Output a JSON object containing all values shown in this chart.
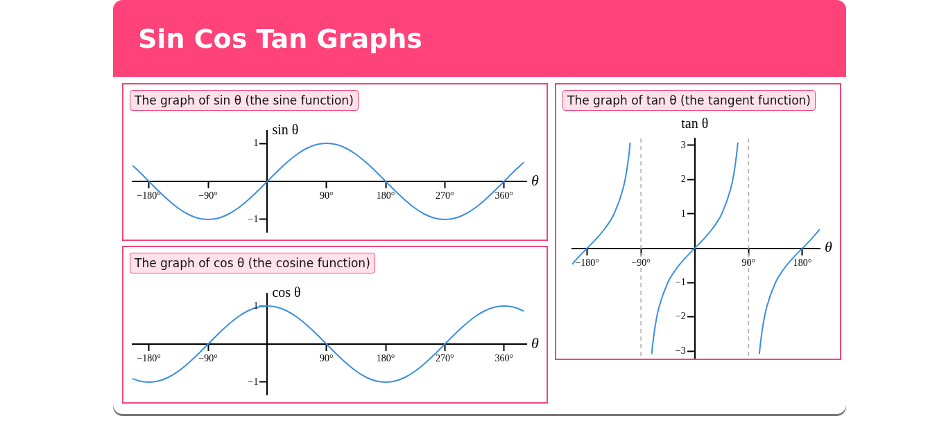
{
  "chart_data": [
    {
      "type": "line",
      "title": "Sin Cos Tan Graphs",
      "subtitle": "The graph of sin θ (the sine function)",
      "xlabel": "θ",
      "ylabel": "sin θ",
      "marker": "none",
      "grid": false,
      "legend": false,
      "x": [
        -205,
        -195,
        -180,
        -165,
        -150,
        -135,
        -120,
        -105,
        -90,
        -75,
        -60,
        -45,
        -30,
        -15,
        0,
        15,
        30,
        45,
        60,
        75,
        90,
        105,
        120,
        135,
        150,
        165,
        180,
        195,
        210,
        225,
        240,
        255,
        270,
        285,
        300,
        315,
        330,
        345,
        360,
        375,
        390
      ],
      "series": [
        {
          "color": "#3b8fdf",
          "values": [
            0.42,
            0.26,
            0,
            -0.26,
            -0.5,
            -0.71,
            -0.87,
            -0.97,
            -1,
            -0.97,
            -0.87,
            -0.71,
            -0.5,
            -0.26,
            0,
            0.26,
            0.5,
            0.71,
            0.87,
            0.97,
            1,
            0.97,
            0.87,
            0.71,
            0.5,
            0.26,
            0,
            -0.26,
            -0.5,
            -0.71,
            -0.87,
            -0.97,
            -1,
            -0.97,
            -0.87,
            -0.71,
            -0.5,
            -0.26,
            0,
            0.26,
            0.5
          ]
        }
      ],
      "xlim": [
        -205,
        394
      ],
      "ylim": [
        -1.33,
        1.33
      ],
      "xticks": [
        {
          "value": -180,
          "label": "−180°"
        },
        {
          "value": -90,
          "label": "−90°"
        },
        {
          "value": 90,
          "label": "90°"
        },
        {
          "value": 180,
          "label": "180°"
        },
        {
          "value": 270,
          "label": "270°"
        },
        {
          "value": 360,
          "label": "360°"
        }
      ],
      "yticks": [
        {
          "value": -1,
          "label": "−1"
        },
        1
      ]
    },
    {
      "type": "line",
      "subtitle": "The graph of cos θ (the cosine function)",
      "xlabel": "θ",
      "ylabel": "cos θ",
      "marker": "none",
      "grid": false,
      "legend": false,
      "x": [
        -205,
        -195,
        -180,
        -165,
        -150,
        -135,
        -120,
        -105,
        -90,
        -75,
        -60,
        -45,
        -30,
        -15,
        0,
        15,
        30,
        45,
        60,
        75,
        90,
        105,
        120,
        135,
        150,
        165,
        180,
        195,
        210,
        225,
        240,
        255,
        270,
        285,
        300,
        315,
        330,
        345,
        360,
        375,
        390
      ],
      "series": [
        {
          "color": "#3b8fdf",
          "values": [
            -0.91,
            -0.97,
            -1,
            -0.97,
            -0.87,
            -0.71,
            -0.5,
            -0.26,
            0,
            0.26,
            0.5,
            0.71,
            0.87,
            0.97,
            1,
            0.97,
            0.87,
            0.71,
            0.5,
            0.26,
            0,
            -0.26,
            -0.5,
            -0.71,
            -0.87,
            -0.97,
            -1,
            -0.97,
            -0.87,
            -0.71,
            -0.5,
            -0.26,
            0,
            0.26,
            0.5,
            0.71,
            0.87,
            0.97,
            1,
            0.97,
            0.87
          ]
        }
      ],
      "xlim": [
        -205,
        394
      ],
      "ylim": [
        -1.33,
        1.33
      ],
      "xticks": [
        {
          "value": -180,
          "label": "−180°"
        },
        {
          "value": -90,
          "label": "−90°"
        },
        {
          "value": 90,
          "label": "90°"
        },
        {
          "value": 180,
          "label": "180°"
        },
        {
          "value": 270,
          "label": "270°"
        },
        {
          "value": 360,
          "label": "360°"
        }
      ],
      "yticks": [
        {
          "value": -1,
          "label": "−1"
        },
        1
      ]
    },
    {
      "type": "line",
      "subtitle": "The graph of tan θ (the tangent function)",
      "xlabel": "θ",
      "ylabel": "tan θ",
      "marker": "none",
      "grid": false,
      "legend": false,
      "x": [
        -205,
        -195,
        -180,
        -165,
        -150,
        -135,
        -120,
        -115,
        -110,
        -108,
        -90,
        -72,
        -70,
        -65,
        -60,
        -45,
        -30,
        -15,
        0,
        15,
        30,
        45,
        60,
        65,
        70,
        72,
        90,
        108,
        110,
        115,
        120,
        135,
        150,
        165,
        180,
        195,
        209
      ],
      "series": [
        {
          "color": "#3b8fdf",
          "values": [
            -0.47,
            -0.27,
            0,
            0.27,
            0.58,
            1,
            1.73,
            2.14,
            2.75,
            3.08,
            null,
            -3.08,
            -2.75,
            -2.14,
            -1.73,
            -1,
            -0.58,
            -0.27,
            0,
            0.27,
            0.58,
            1,
            1.73,
            2.14,
            2.75,
            3.08,
            null,
            -3.08,
            -2.75,
            -2.14,
            -1.73,
            -1,
            -0.58,
            -0.27,
            0,
            0.27,
            0.55
          ]
        }
      ],
      "xlim": [
        -205,
        209
      ],
      "ylim": [
        -3.2,
        3.2
      ],
      "xticks": [
        {
          "value": -180,
          "label": "−180°"
        },
        {
          "value": -90,
          "label": "−90°"
        },
        {
          "value": 90,
          "label": "90°"
        },
        {
          "value": 180,
          "label": "180°"
        }
      ],
      "yticks": [
        {
          "value": -3,
          "label": "−3"
        },
        {
          "value": -2,
          "label": "−2"
        },
        {
          "value": -1,
          "label": "−1"
        },
        1,
        2,
        3
      ],
      "ref_lines": [
        {
          "axis": "x",
          "value": -90,
          "color": "#aaaaaa",
          "line_style": "dashed"
        },
        {
          "axis": "x",
          "value": 90,
          "color": "#aaaaaa",
          "line_style": "dashed"
        }
      ]
    }
  ]
}
